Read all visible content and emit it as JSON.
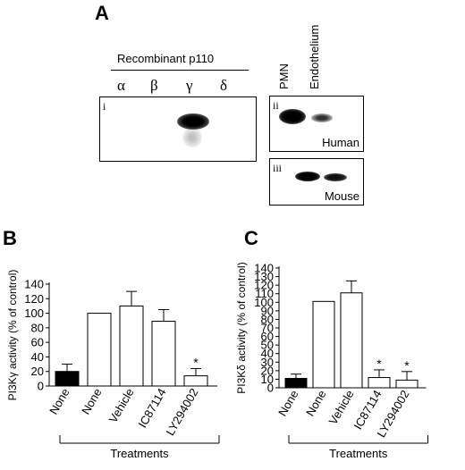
{
  "panel_a": {
    "letter": "A",
    "recombinant_label": "Recombinant p110",
    "isoforms": [
      "α",
      "β",
      "γ",
      "δ"
    ],
    "blot_i": "i",
    "blot_ii": "ii",
    "blot_iii": "iii",
    "col_pmn": "PMN",
    "col_endothelium": "Endothelium",
    "human_label": "Human",
    "mouse_label": "Mouse"
  },
  "chart_data": [
    {
      "type": "bar",
      "letter": "B",
      "ylabel": "PI3Kγ activity (% of control)",
      "xlabel": "Treatments",
      "categories": [
        "None",
        "None",
        "Vehicle",
        "IC87114",
        "LY294002"
      ],
      "values": [
        20,
        100,
        110,
        89,
        14
      ],
      "errors": [
        10,
        0,
        20,
        16,
        10
      ],
      "fills": [
        "#000000",
        "#ffffff",
        "#ffffff",
        "#ffffff",
        "#ffffff"
      ],
      "significant": [
        false,
        false,
        false,
        false,
        true
      ],
      "star": "*",
      "yticks": [
        0,
        20,
        40,
        60,
        80,
        100,
        120,
        140
      ],
      "ylim": [
        0,
        140
      ]
    },
    {
      "type": "bar",
      "letter": "C",
      "ylabel": "PI3Kδ activity (% of control)",
      "xlabel": "Treatments",
      "categories": [
        "None",
        "None",
        "Vehicle",
        "IC87114",
        "LY294002"
      ],
      "values": [
        11,
        101,
        111,
        12,
        9
      ],
      "errors": [
        5,
        0,
        14,
        9,
        10
      ],
      "fills": [
        "#000000",
        "#ffffff",
        "#ffffff",
        "#ffffff",
        "#ffffff"
      ],
      "significant": [
        false,
        false,
        false,
        true,
        true
      ],
      "star": "*",
      "yticks": [
        0,
        10,
        20,
        30,
        40,
        50,
        60,
        70,
        80,
        90,
        100,
        110,
        120,
        130,
        140
      ],
      "ylim": [
        0,
        140
      ]
    }
  ]
}
